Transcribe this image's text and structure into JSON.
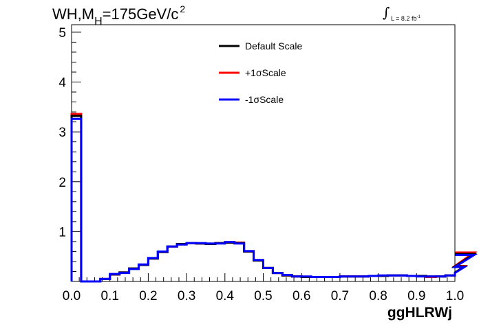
{
  "title": {
    "prefix": "WH,M",
    "subscript": "H",
    "suffix": "=175GeV/c",
    "superscript": "2"
  },
  "luminosity": {
    "integral": "∫",
    "text": "L = 8.2 fb",
    "superscript": "-1"
  },
  "colors": {
    "default": "#000000",
    "plus": "#ff0000",
    "minus": "#0000ff"
  },
  "chart_data": {
    "type": "line",
    "style": "step-histogram",
    "xlabel": "ggHLRWj",
    "ylabel": "",
    "xlim": [
      0,
      1
    ],
    "ylim": [
      0,
      5.15
    ],
    "x_ticks": [
      "0.0",
      "0.1",
      "0.2",
      "0.3",
      "0.4",
      "0.5",
      "0.6",
      "0.7",
      "0.8",
      "0.9",
      "1.0"
    ],
    "y_ticks": [
      "1",
      "2",
      "3",
      "4",
      "5"
    ],
    "bin_width": 0.025,
    "legend_position": "top-center",
    "series": [
      {
        "name": "Default Scale",
        "color": "#000000",
        "values": [
          3.32,
          0.0,
          0.0,
          0.05,
          0.14,
          0.18,
          0.26,
          0.33,
          0.46,
          0.59,
          0.7,
          0.75,
          0.77,
          0.76,
          0.75,
          0.77,
          0.78,
          0.77,
          0.6,
          0.42,
          0.27,
          0.17,
          0.12,
          0.1,
          0.09,
          0.09,
          0.09,
          0.09,
          0.1,
          0.1,
          0.1,
          0.11,
          0.11,
          0.12,
          0.12,
          0.11,
          0.11,
          0.1,
          0.1,
          0.12,
          0.18,
          0.3,
          0.55
        ]
      },
      {
        "name": "+1σScale",
        "color": "#ff0000",
        "values": [
          3.36,
          0.0,
          0.0,
          0.05,
          0.14,
          0.18,
          0.26,
          0.33,
          0.46,
          0.59,
          0.7,
          0.75,
          0.77,
          0.76,
          0.75,
          0.77,
          0.78,
          0.78,
          0.6,
          0.42,
          0.27,
          0.17,
          0.12,
          0.1,
          0.09,
          0.09,
          0.09,
          0.09,
          0.1,
          0.1,
          0.1,
          0.11,
          0.11,
          0.12,
          0.12,
          0.11,
          0.11,
          0.09,
          0.1,
          0.12,
          0.17,
          0.31,
          0.58
        ]
      },
      {
        "name": "-1σScale",
        "color": "#0000ff",
        "values": [
          3.26,
          0.0,
          0.0,
          0.05,
          0.15,
          0.17,
          0.25,
          0.34,
          0.47,
          0.6,
          0.7,
          0.74,
          0.77,
          0.77,
          0.76,
          0.76,
          0.79,
          0.76,
          0.61,
          0.43,
          0.27,
          0.17,
          0.13,
          0.1,
          0.1,
          0.09,
          0.09,
          0.09,
          0.1,
          0.1,
          0.1,
          0.11,
          0.12,
          0.12,
          0.12,
          0.11,
          0.1,
          0.1,
          0.1,
          0.12,
          0.17,
          0.29,
          0.53
        ]
      }
    ]
  }
}
